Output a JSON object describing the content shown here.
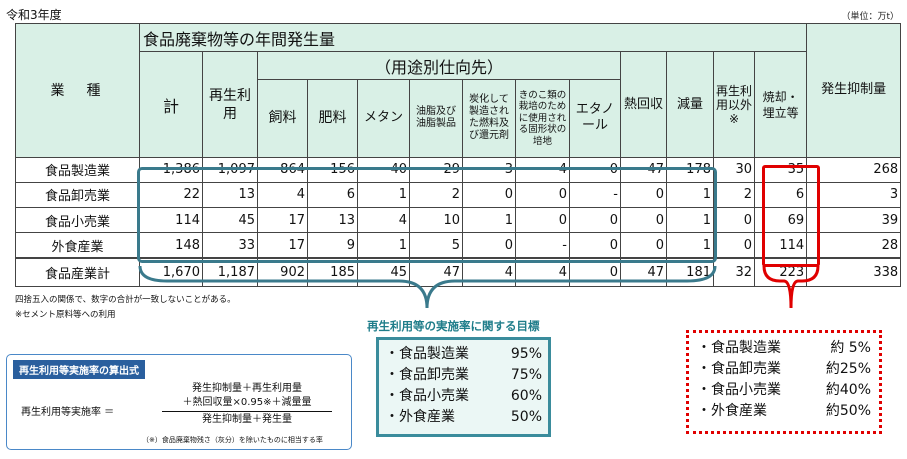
{
  "header": {
    "era": "令和3年度",
    "unit": "（単位：万t）"
  },
  "table": {
    "title": "食品廃棄物等の年間発生量",
    "col_gyoshu": "業　種",
    "col_kei": "計",
    "col_saisei": "再生利用",
    "col_youto": "（用途別仕向先）",
    "col_shiryo": "飼料",
    "col_hiryo": "肥料",
    "col_metan": "メタン",
    "col_yushi": "油脂及び油脂製品",
    "col_tanka": "炭化して製造された燃料及び還元剤",
    "col_kinoko": "きのこ類の栽培のために使用される固形状の培地",
    "col_etanol": "エタノール",
    "col_netsu": "熱回収",
    "col_genryo": "減量",
    "col_igai": "再生利用以外※",
    "col_shokyaku": "焼却・埋立等",
    "col_yokusei": "発生抑制量",
    "rows": [
      {
        "name": "食品製造業",
        "v": [
          "1,386",
          "1,097",
          "864",
          "156",
          "40",
          "29",
          "3",
          "4",
          "0",
          "47",
          "178",
          "30",
          "35",
          "268"
        ]
      },
      {
        "name": "食品卸売業",
        "v": [
          "22",
          "13",
          "4",
          "6",
          "1",
          "2",
          "0",
          "0",
          "-",
          "0",
          "1",
          "2",
          "6",
          "3"
        ]
      },
      {
        "name": "食品小売業",
        "v": [
          "114",
          "45",
          "17",
          "13",
          "4",
          "10",
          "1",
          "0",
          "0",
          "0",
          "1",
          "0",
          "69",
          "39"
        ]
      },
      {
        "name": "外食産業",
        "v": [
          "148",
          "33",
          "17",
          "9",
          "1",
          "5",
          "0",
          "-",
          "0",
          "0",
          "1",
          "0",
          "114",
          "28"
        ]
      }
    ],
    "total": {
      "name": "食品産業計",
      "v": [
        "1,670",
        "1,187",
        "902",
        "185",
        "45",
        "47",
        "4",
        "4",
        "0",
        "47",
        "181",
        "32",
        "223",
        "338"
      ]
    }
  },
  "notes": {
    "rounding": "四捨五入の関係で、数字の合計が一致しないことがある。",
    "cement": "※セメント原料等への利用"
  },
  "goals": {
    "title": "再生利用等の実施率に関する目標",
    "items": [
      {
        "name": "・食品製造業",
        "value": "95%"
      },
      {
        "name": "・食品卸売業",
        "value": "75%"
      },
      {
        "name": "・食品小売業",
        "value": "60%"
      },
      {
        "name": "・外食産業",
        "value": "50%"
      }
    ]
  },
  "targets": {
    "items": [
      {
        "name": "・食品製造業",
        "value": "約 5%"
      },
      {
        "name": "・食品卸売業",
        "value": "約25%"
      },
      {
        "name": "・食品小売業",
        "value": "約40%"
      },
      {
        "name": "・外食産業",
        "value": "約50%"
      }
    ]
  },
  "formula": {
    "title": "再生利用等実施率の算出式",
    "lhs": "再生利用等実施率 ＝",
    "num1": "発生抑制量＋再生利用量",
    "num2": "＋熱回収量×0.95※＋減量量",
    "den": "発生抑制量＋発生量",
    "note": "（※）食品廃棄物残さ（灰分）を除いたものに相当する率"
  },
  "colors": {
    "teal_frame": "#3a7a8c",
    "red_frame": "#e00000",
    "header_bg": "#d9f0e6",
    "formula_blue": "#2a5f9e"
  }
}
